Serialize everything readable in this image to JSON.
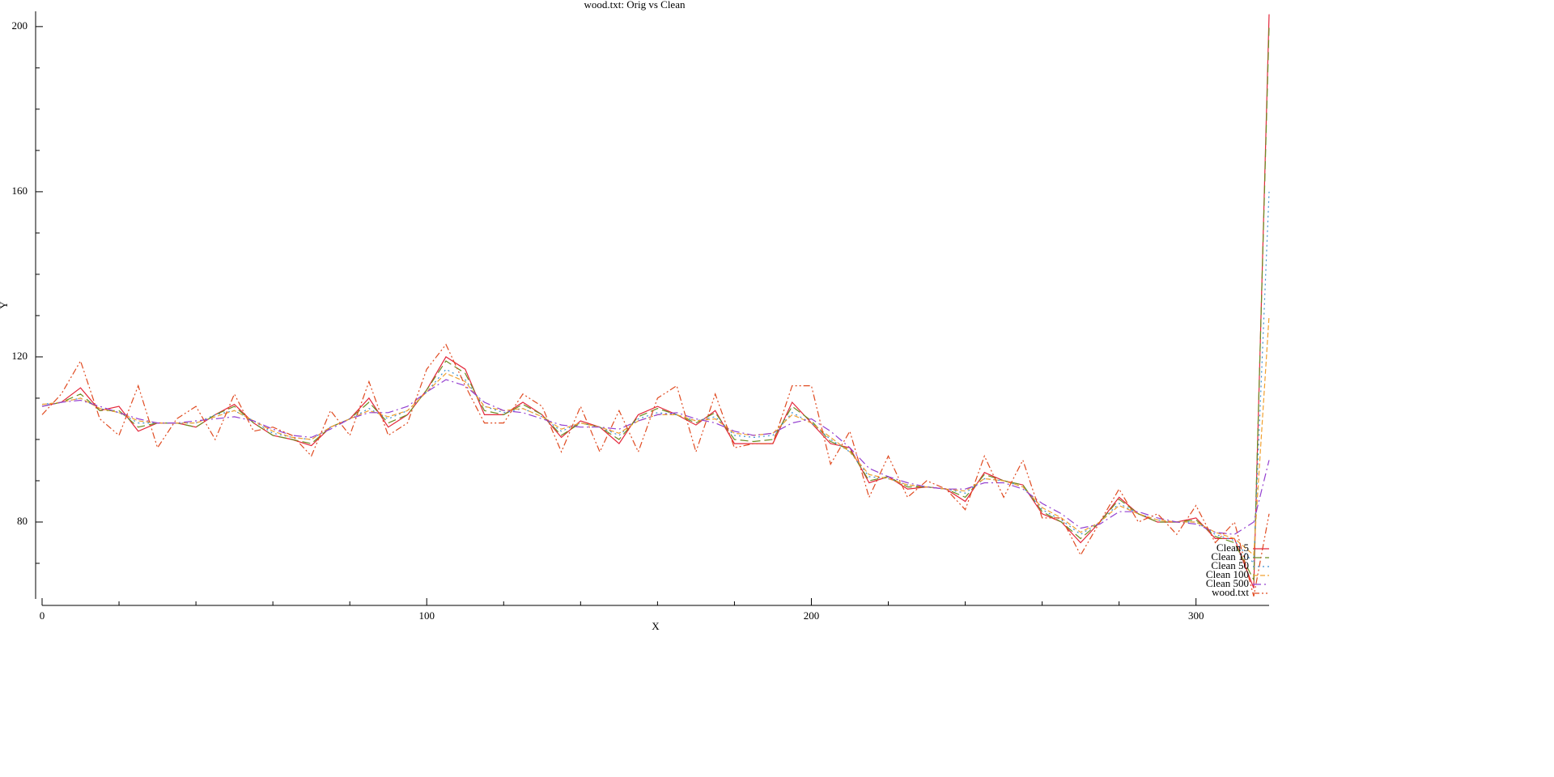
{
  "chart_data": {
    "type": "line",
    "title": "wood.txt: Orig vs Clean",
    "x_label": "X",
    "y_label": "Y",
    "xlim": [
      0,
      319
    ],
    "ylim": [
      60,
      203.5
    ],
    "xticks": [
      0,
      100,
      200,
      300
    ],
    "x_minor_ticks": [
      20,
      40,
      60,
      80,
      120,
      140,
      160,
      180,
      220,
      240,
      260,
      280
    ],
    "yticks": [
      80,
      120,
      160,
      200
    ],
    "y_minor_ticks": [
      70,
      90,
      100,
      110,
      130,
      140,
      150,
      170,
      180,
      190
    ],
    "legend": "bottom right",
    "x": [
      0,
      5,
      10,
      15,
      20,
      25,
      30,
      35,
      40,
      45,
      50,
      55,
      60,
      65,
      70,
      75,
      80,
      85,
      90,
      95,
      100,
      105,
      110,
      115,
      120,
      125,
      130,
      135,
      140,
      145,
      150,
      155,
      160,
      165,
      170,
      175,
      180,
      185,
      190,
      195,
      200,
      205,
      210,
      215,
      220,
      225,
      230,
      235,
      240,
      245,
      250,
      255,
      260,
      265,
      270,
      275,
      280,
      285,
      290,
      295,
      300,
      305,
      310,
      315,
      319
    ],
    "series": [
      {
        "name": "Clean 5",
        "color": "#e3263a",
        "dash": "none",
        "values": [
          108,
          109,
          112.5,
          107,
          108,
          102,
          104,
          104,
          103,
          106,
          108.5,
          104,
          101,
          100,
          98.5,
          103,
          105,
          110,
          103,
          106,
          112,
          120,
          117,
          106,
          106,
          109,
          106,
          100.5,
          104.5,
          103,
          99,
          106,
          108,
          106,
          103.5,
          107,
          99,
          99,
          99,
          109,
          104,
          99,
          98,
          89.5,
          91,
          88,
          88.5,
          88,
          85,
          92,
          90,
          89,
          82,
          80,
          75,
          80,
          86,
          82,
          80,
          80,
          81,
          76,
          76,
          64,
          203
        ]
      },
      {
        "name": "Clean 10",
        "color": "#6b8e23",
        "dash": "10,5",
        "values": [
          108,
          109,
          111,
          107,
          107,
          103,
          104,
          104,
          103,
          106,
          108,
          104,
          101,
          100,
          99,
          103,
          105,
          109,
          104,
          106,
          112,
          119,
          116,
          107,
          106,
          108.5,
          106,
          101,
          104,
          103,
          100,
          105.5,
          107.5,
          106,
          104,
          106.5,
          100,
          99.5,
          100,
          108,
          104.5,
          99.5,
          97.5,
          90,
          91,
          88.5,
          88.5,
          88,
          86,
          91.5,
          90,
          89,
          82.5,
          80,
          76,
          80,
          85.5,
          82,
          80,
          80,
          80.5,
          76.5,
          75,
          66,
          200
        ]
      },
      {
        "name": "Clean 50",
        "color": "#3a8fd0",
        "dash": "2,4",
        "values": [
          108.5,
          109,
          110,
          107.5,
          106.5,
          104,
          104,
          104,
          104,
          106,
          107,
          104.5,
          101.5,
          100.5,
          100,
          103,
          105,
          107.5,
          105,
          107,
          111.5,
          117,
          114.5,
          108,
          106.5,
          107.5,
          105.5,
          102,
          104,
          103,
          101,
          105,
          106.5,
          106,
          104.5,
          105.5,
          101,
          100.5,
          101,
          106.5,
          104,
          100,
          97,
          91,
          90.5,
          89,
          88.5,
          88,
          87,
          90.5,
          90,
          88.5,
          83,
          80.5,
          77,
          80,
          84.5,
          82,
          80.5,
          80,
          80,
          77,
          75.5,
          70,
          160
        ]
      },
      {
        "name": "Clean 100",
        "color": "#f0a030",
        "dash": "6,3",
        "values": [
          108.5,
          109,
          110,
          107.5,
          106.5,
          104.5,
          104,
          104,
          104,
          105.5,
          107,
          104.5,
          102,
          100.5,
          100,
          103,
          105,
          107,
          105.5,
          107,
          111.5,
          116,
          114,
          108,
          107,
          107.5,
          105.5,
          102.5,
          104,
          103,
          101.5,
          104.5,
          106,
          106,
          104.5,
          105,
          101.5,
          101,
          101.5,
          106,
          104,
          100.5,
          97,
          91.5,
          90.5,
          89,
          88.5,
          88,
          87.5,
          90.5,
          90,
          88.5,
          83.5,
          81,
          77.5,
          80,
          84,
          82,
          80.5,
          80,
          80,
          77.5,
          76,
          72,
          130
        ]
      },
      {
        "name": "Clean 500",
        "color": "#9440d0",
        "dash": "10,4,2,4",
        "values": [
          108,
          109,
          109.5,
          108,
          106.5,
          105,
          104,
          104,
          104.5,
          105,
          105.5,
          104.5,
          102.5,
          101,
          100.5,
          102.5,
          105,
          106.5,
          106.5,
          108,
          111.5,
          114.5,
          113,
          109,
          107,
          106.5,
          105,
          103.5,
          103,
          103,
          102.5,
          104.5,
          106,
          106.5,
          105,
          104,
          102,
          101,
          101.5,
          104,
          105,
          102,
          98,
          93,
          91,
          89.5,
          88.5,
          88,
          88,
          89.5,
          89.5,
          88,
          84.5,
          82,
          78.5,
          79.5,
          82.5,
          82.5,
          81,
          80,
          79.5,
          77.5,
          77,
          80,
          95
        ]
      },
      {
        "name": "wood.txt",
        "color": "#e04a20",
        "dash": "8,3,2,3,2,3",
        "values": [
          106,
          111,
          119,
          105,
          101,
          113,
          98,
          105,
          108,
          100,
          111,
          102,
          103,
          101,
          96,
          107,
          101,
          114,
          101,
          104,
          117,
          123,
          113,
          104,
          104,
          111,
          108,
          97,
          108,
          97,
          107,
          97,
          110,
          113,
          97,
          111,
          98,
          99,
          99,
          113,
          113,
          94,
          102,
          86,
          96,
          86,
          90,
          88,
          83,
          96,
          86,
          95,
          81,
          81,
          72,
          80,
          88,
          80,
          82,
          77,
          84,
          75,
          80,
          62,
          82
        ]
      }
    ]
  }
}
